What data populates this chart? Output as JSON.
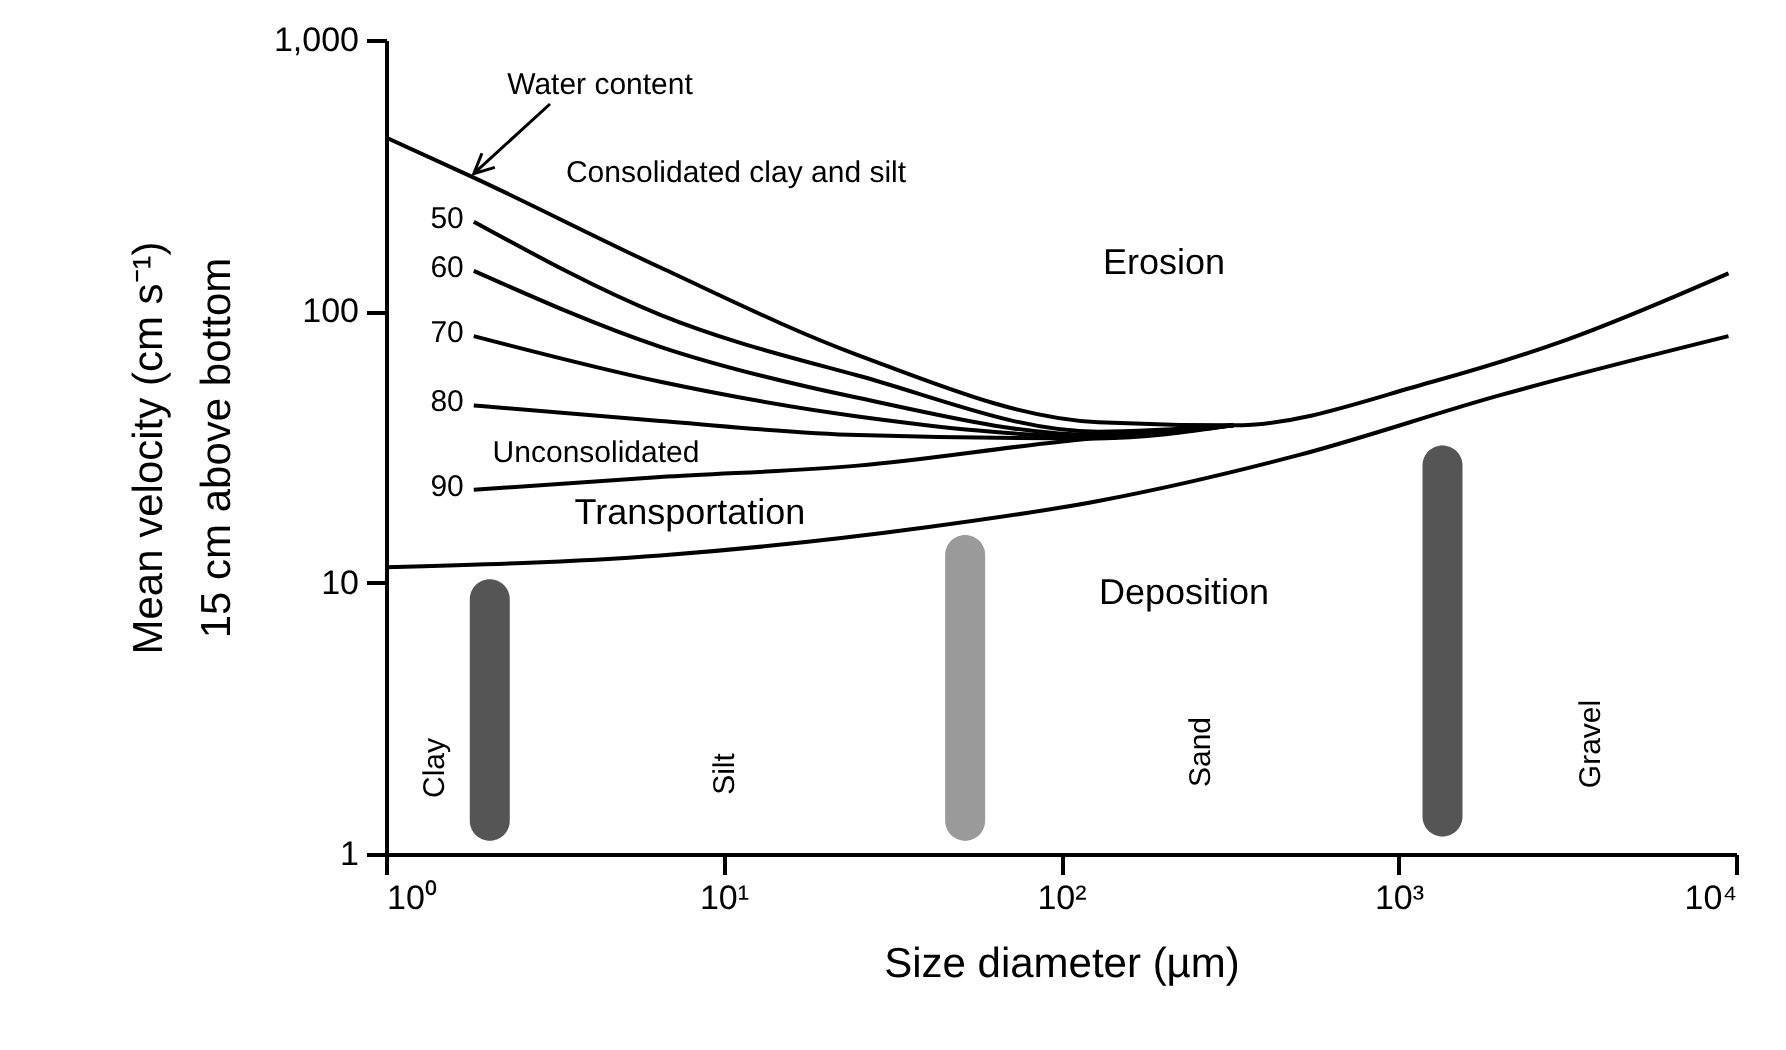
{
  "chart_data": {
    "type": "line",
    "xlabel": "Size diameter    (µm)",
    "ylabel": "Mean velocity  (cm s⁻¹)\n15 cm above bottom",
    "log": "xy",
    "grid": false,
    "legend": "left",
    "marker": "none",
    "line_style": "solid",
    "xlim": [
      1,
      10000
    ],
    "xticks": [
      {
        "value": 1,
        "label": "10⁰"
      },
      {
        "value": 10,
        "label": "10¹"
      },
      {
        "value": 100,
        "label": "10²"
      },
      {
        "value": 1000,
        "label": "10³"
      },
      {
        "value": 10000,
        "label": "10⁴"
      }
    ],
    "ylim": [
      1,
      1000
    ],
    "yticks": [
      1,
      10,
      100,
      {
        "value": 1000,
        "label": "1,000"
      }
    ],
    "series": [
      {
        "color": "#000000",
        "x": [
          1,
          1.82,
          6.5,
          25,
          129,
          324,
          1260,
          3100,
          9500
        ],
        "values": [
          437,
          311,
          145,
          69,
          39,
          38,
          55,
          78,
          138
        ]
      },
      {
        "name": "50",
        "color": "#000000",
        "x": [
          1.82,
          6.5,
          25,
          129,
          324
        ],
        "values": [
          214,
          97,
          58,
          36,
          38
        ]
      },
      {
        "name": "60",
        "color": "#000000",
        "x": [
          1.82,
          6.5,
          25,
          129,
          324
        ],
        "values": [
          141,
          74,
          48,
          35,
          38
        ]
      },
      {
        "name": "70",
        "color": "#000000",
        "x": [
          1.82,
          6.5,
          25,
          129,
          324
        ],
        "values": [
          81,
          55,
          41,
          34.5,
          38
        ]
      },
      {
        "name": "80",
        "color": "#000000",
        "x": [
          1.82,
          6.5,
          25,
          129,
          324
        ],
        "values": [
          45,
          39.4,
          35,
          34,
          38
        ]
      },
      {
        "name": "90",
        "color": "#000000",
        "x": [
          1.82,
          6.5,
          25,
          98,
          324
        ],
        "values": [
          22,
          24.5,
          27,
          33,
          38
        ]
      },
      {
        "color": "#000000",
        "x": [
          1,
          6.5,
          40,
          129,
          505,
          1990,
          9500
        ],
        "values": [
          11.4,
          12.6,
          16,
          20,
          29.5,
          49,
          81
        ]
      },
      {
        "type": "bar",
        "x": [
          2.03,
          52,
          1350
        ],
        "base": [
          1.12,
          1.12,
          1.16
        ],
        "values": [
          9.18,
          13.88,
          30.84
        ],
        "colors": [
          "#555555",
          "#9a9a9a",
          "#555555"
        ]
      }
    ],
    "annotations": [
      "Water content",
      "Consolidated clay and silt",
      "Erosion",
      "Unconsolidated",
      "Transportation",
      "Deposition",
      "Clay",
      "Silt",
      "Sand",
      "Gravel"
    ]
  }
}
